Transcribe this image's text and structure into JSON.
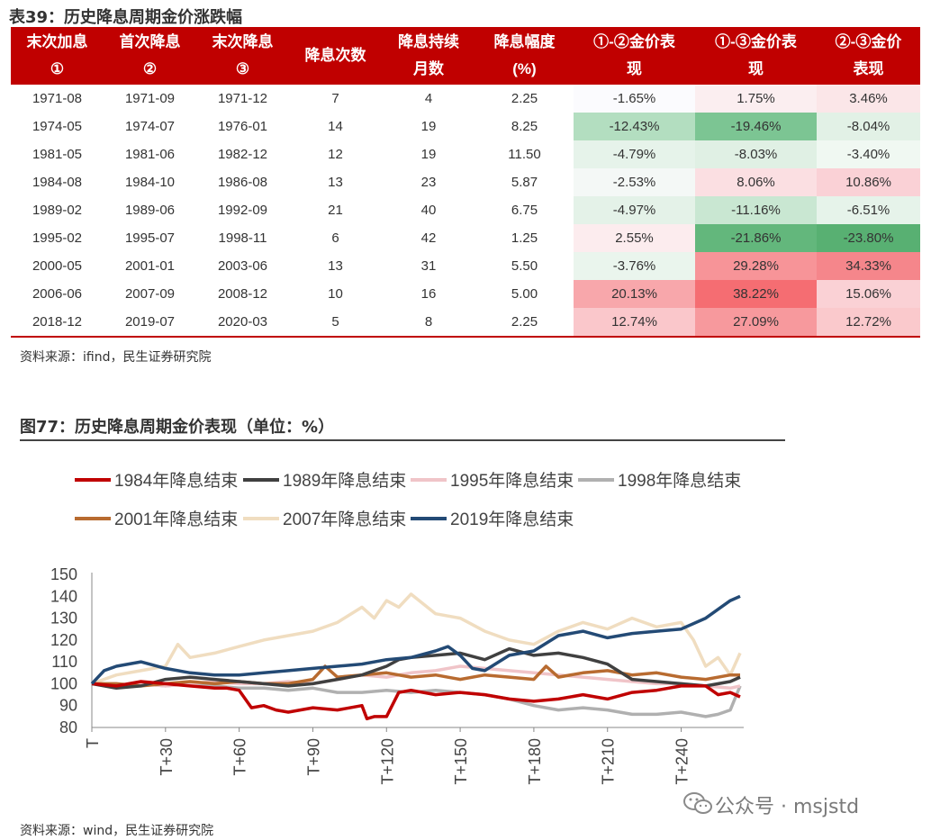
{
  "table": {
    "title": "表39：历史降息周期金价涨跌幅",
    "headers": [
      [
        "末次加息",
        "①"
      ],
      [
        "首次降息",
        "②"
      ],
      [
        "末次降息",
        "③"
      ],
      [
        "降息次数"
      ],
      [
        "降息持续",
        "月数"
      ],
      [
        "降息幅度",
        "(%)"
      ],
      [
        "①-②金价表",
        "现"
      ],
      [
        "①-③金价表",
        "现"
      ],
      [
        "②-③金价",
        "表现"
      ]
    ],
    "rows": [
      [
        "1971-08",
        "1971-09",
        "1971-12",
        "7",
        "4",
        "2.25",
        "-1.65%",
        "1.75%",
        "3.46%"
      ],
      [
        "1974-05",
        "1974-07",
        "1976-01",
        "14",
        "19",
        "8.25",
        "-12.43%",
        "-19.46%",
        "-8.04%"
      ],
      [
        "1981-05",
        "1981-06",
        "1982-12",
        "12",
        "19",
        "11.50",
        "-4.79%",
        "-8.03%",
        "-3.40%"
      ],
      [
        "1984-08",
        "1984-10",
        "1986-08",
        "13",
        "23",
        "5.87",
        "-2.53%",
        "8.06%",
        "10.86%"
      ],
      [
        "1989-02",
        "1989-06",
        "1992-09",
        "21",
        "40",
        "6.75",
        "-4.97%",
        "-11.16%",
        "-6.51%"
      ],
      [
        "1995-02",
        "1995-07",
        "1998-11",
        "6",
        "42",
        "1.25",
        "2.55%",
        "-21.86%",
        "-23.80%"
      ],
      [
        "2000-05",
        "2001-01",
        "2003-06",
        "13",
        "31",
        "5.50",
        "-3.76%",
        "29.28%",
        "34.33%"
      ],
      [
        "2006-06",
        "2007-09",
        "2008-12",
        "10",
        "16",
        "5.00",
        "20.13%",
        "38.22%",
        "15.06%"
      ],
      [
        "2018-12",
        "2019-07",
        "2020-03",
        "5",
        "8",
        "2.25",
        "12.74%",
        "27.09%",
        "12.72%"
      ]
    ],
    "heat_colors": [
      [
        "#fbfbfe",
        "#fbeef0",
        "#fbe6e8"
      ],
      [
        "#b3dec0",
        "#7cc593",
        "#e2f1e6"
      ],
      [
        "#e6f3ea",
        "#e0f0e4",
        "#f0f8f2"
      ],
      [
        "#f4f8f6",
        "#fbdfe2",
        "#fad1d6"
      ],
      [
        "#e4f2e8",
        "#c9e7d2",
        "#e6f3ea"
      ],
      [
        "#fcecee",
        "#63b77c",
        "#58b072"
      ],
      [
        "#eaf5ed",
        "#f79498",
        "#f5868b"
      ],
      [
        "#f8a7ab",
        "#f56d72",
        "#fad1d5"
      ],
      [
        "#fac7cb",
        "#f7999d",
        "#fac9cc"
      ]
    ],
    "source": "资料来源：ifind，民生证券研究院"
  },
  "figure": {
    "title": "图77：历史降息周期金价表现（单位：%）",
    "source": "资料来源：wind，民生证券研究院"
  },
  "watermark": "公众号 · msjstd",
  "chart_data": {
    "type": "line",
    "title": "",
    "xlabel": "",
    "ylabel": "",
    "ylim": [
      80,
      150
    ],
    "yticks": [
      80,
      90,
      100,
      110,
      120,
      130,
      140,
      150
    ],
    "x_ticks": [
      "T",
      "T+30",
      "T+60",
      "T+90",
      "T+120",
      "T+150",
      "T+180",
      "T+210",
      "T+240"
    ],
    "x_tick_values": [
      0,
      30,
      60,
      90,
      120,
      150,
      180,
      210,
      240
    ],
    "xlim": [
      0,
      264
    ],
    "grid": false,
    "legend_position": "top",
    "series": [
      {
        "name": "1984年降息结束",
        "color": "#c00000",
        "x": [
          0,
          10,
          20,
          30,
          40,
          50,
          55,
          60,
          65,
          70,
          75,
          80,
          90,
          100,
          110,
          112,
          115,
          120,
          125,
          130,
          140,
          150,
          160,
          170,
          180,
          190,
          200,
          210,
          220,
          230,
          240,
          250,
          255,
          260,
          264
        ],
        "y": [
          100,
          99,
          101,
          100,
          99,
          98,
          98,
          97,
          89,
          90,
          88,
          87,
          89,
          88,
          90,
          84,
          85,
          85,
          96,
          97,
          95,
          96,
          95,
          93,
          92,
          93,
          95,
          93,
          96,
          97,
          99,
          99,
          95,
          96,
          94
        ]
      },
      {
        "name": "1989年降息结束",
        "color": "#404040",
        "x": [
          0,
          10,
          20,
          30,
          40,
          50,
          60,
          70,
          80,
          90,
          100,
          110,
          120,
          125,
          130,
          140,
          150,
          160,
          170,
          180,
          190,
          200,
          210,
          220,
          230,
          240,
          250,
          260,
          264
        ],
        "y": [
          100,
          98,
          99,
          102,
          103,
          102,
          101,
          100,
          99,
          100,
          102,
          104,
          108,
          111,
          112,
          113,
          114,
          111,
          116,
          113,
          114,
          112,
          109,
          102,
          101,
          100,
          99,
          101,
          103
        ]
      },
      {
        "name": "1995年降息结束",
        "color": "#f0c4c8",
        "x": [
          0,
          10,
          20,
          30,
          40,
          50,
          60,
          70,
          80,
          90,
          100,
          110,
          120,
          130,
          140,
          150,
          160,
          170,
          180,
          190,
          200,
          210,
          220,
          230,
          240,
          250,
          260,
          264
        ],
        "y": [
          100,
          99,
          100,
          99,
          100,
          101,
          100,
          100,
          101,
          100,
          102,
          104,
          103,
          105,
          106,
          108,
          107,
          106,
          105,
          104,
          103,
          102,
          101,
          100,
          100,
          99,
          98,
          99
        ]
      },
      {
        "name": "1998年降息结束",
        "color": "#b0b0b0",
        "x": [
          0,
          10,
          20,
          30,
          40,
          50,
          60,
          70,
          80,
          90,
          100,
          110,
          120,
          130,
          140,
          150,
          160,
          170,
          180,
          190,
          200,
          210,
          220,
          230,
          240,
          250,
          255,
          260,
          264
        ],
        "y": [
          100,
          99,
          100,
          99,
          100,
          99,
          98,
          98,
          97,
          98,
          96,
          96,
          97,
          96,
          97,
          96,
          95,
          93,
          90,
          88,
          89,
          88,
          86,
          86,
          87,
          85,
          86,
          88,
          99
        ]
      },
      {
        "name": "2001年降息结束",
        "color": "#b86b30",
        "x": [
          0,
          10,
          20,
          30,
          40,
          50,
          60,
          70,
          80,
          90,
          95,
          100,
          110,
          120,
          130,
          140,
          150,
          160,
          170,
          180,
          185,
          190,
          200,
          210,
          220,
          230,
          240,
          250,
          260,
          264
        ],
        "y": [
          100,
          100,
          99,
          100,
          101,
          100,
          101,
          100,
          100,
          102,
          108,
          103,
          104,
          105,
          103,
          104,
          102,
          104,
          103,
          102,
          108,
          103,
          105,
          106,
          104,
          105,
          103,
          102,
          104,
          104
        ]
      },
      {
        "name": "2007年降息结束",
        "color": "#f0ddc0",
        "x": [
          0,
          10,
          20,
          30,
          35,
          40,
          50,
          60,
          70,
          80,
          90,
          100,
          110,
          115,
          120,
          125,
          130,
          140,
          150,
          160,
          170,
          180,
          190,
          200,
          210,
          220,
          230,
          240,
          245,
          250,
          255,
          260,
          264
        ],
        "y": [
          100,
          104,
          106,
          108,
          118,
          112,
          114,
          117,
          120,
          122,
          124,
          128,
          135,
          130,
          138,
          135,
          141,
          132,
          130,
          124,
          120,
          118,
          124,
          128,
          125,
          130,
          126,
          128,
          120,
          108,
          112,
          104,
          114
        ]
      },
      {
        "name": "2019年降息结束",
        "color": "#234a75",
        "x": [
          0,
          5,
          10,
          20,
          30,
          40,
          50,
          60,
          70,
          80,
          90,
          100,
          110,
          120,
          130,
          140,
          145,
          150,
          155,
          160,
          170,
          180,
          190,
          200,
          210,
          220,
          230,
          240,
          250,
          260,
          264
        ],
        "y": [
          100,
          106,
          108,
          110,
          107,
          105,
          104,
          104,
          105,
          106,
          107,
          108,
          109,
          111,
          112,
          115,
          117,
          113,
          107,
          106,
          113,
          115,
          122,
          124,
          121,
          123,
          124,
          125,
          130,
          138,
          140
        ]
      }
    ]
  }
}
